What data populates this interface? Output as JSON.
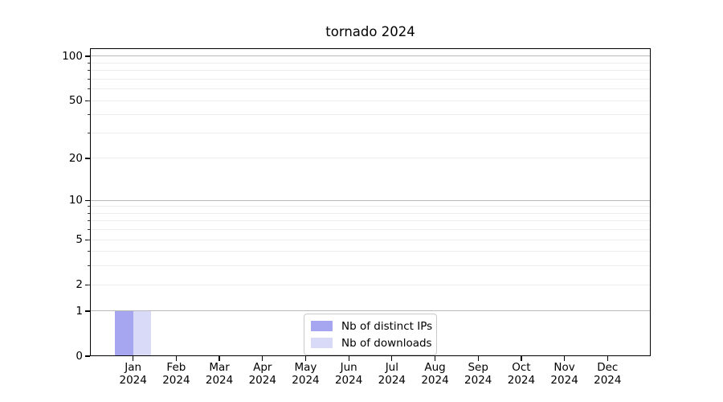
{
  "chart_data": {
    "type": "bar",
    "title": "tornado 2024",
    "categories": [
      "Jan",
      "Feb",
      "Mar",
      "Apr",
      "May",
      "Jun",
      "Jul",
      "Aug",
      "Sep",
      "Oct",
      "Nov",
      "Dec"
    ],
    "year": "2024",
    "series": [
      {
        "name": "Nb of distinct IPs",
        "color": "#a5a5f0",
        "values": [
          1,
          0,
          0,
          0,
          0,
          0,
          0,
          0,
          0,
          0,
          0,
          0
        ]
      },
      {
        "name": "Nb of downloads",
        "color": "#d9d9f8",
        "values": [
          1,
          0,
          0,
          0,
          0,
          0,
          0,
          0,
          0,
          0,
          0,
          0
        ]
      }
    ],
    "xlabel": "",
    "ylabel": "",
    "y_axis": {
      "scale": "log10(1+y)",
      "min": 0,
      "max": 113.3,
      "ticks_labeled": [
        0,
        1,
        2,
        5,
        10,
        20,
        50,
        100
      ],
      "grid_major": [
        1,
        10,
        100
      ],
      "grid_minor": [
        2,
        3,
        4,
        5,
        6,
        7,
        8,
        9,
        20,
        30,
        40,
        50,
        60,
        70,
        80,
        90
      ]
    },
    "grid": "horizontal",
    "legend": {
      "location": "inside-bottom-center",
      "entries": [
        "Nb of distinct IPs",
        "Nb of downloads"
      ]
    },
    "colors": {
      "grid_major": "#b9b9b9",
      "grid_minor": "#ededed",
      "spine": "#000000",
      "text": "#000000",
      "legend_border": "#c9c9c9",
      "background": "#ffffff"
    }
  }
}
